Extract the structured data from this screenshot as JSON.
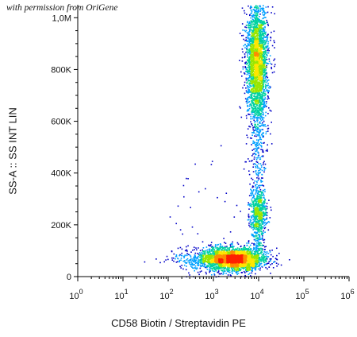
{
  "watermark": "with permission from OriGene",
  "chart_data": {
    "type": "scatter",
    "subtype": "flow-cytometry density dot plot",
    "xlabel": "CD58 Biotin / Streptavidin PE",
    "ylabel": "SS-A :: SS INT LIN",
    "xscale": "log",
    "yscale": "linear",
    "xlim": [
      1,
      1000000
    ],
    "ylim": [
      0,
      1050000
    ],
    "x_ticks": [
      {
        "base": "10",
        "exp": "0"
      },
      {
        "base": "10",
        "exp": "1"
      },
      {
        "base": "10",
        "exp": "2"
      },
      {
        "base": "10",
        "exp": "3"
      },
      {
        "base": "10",
        "exp": "4"
      },
      {
        "base": "10",
        "exp": "5"
      },
      {
        "base": "10",
        "exp": "6"
      }
    ],
    "y_ticks": [
      {
        "value": 0,
        "label": "0"
      },
      {
        "value": 200000,
        "label": "200K"
      },
      {
        "value": 400000,
        "label": "400K"
      },
      {
        "value": 600000,
        "label": "600K"
      },
      {
        "value": 800000,
        "label": "800K"
      },
      {
        "value": 1000000,
        "label": "1,0M"
      }
    ],
    "colormap": [
      "#0000c8",
      "#00a0ff",
      "#00d2a0",
      "#9be600",
      "#ffe600",
      "#ff8c00",
      "#ff2000"
    ],
    "populations": [
      {
        "x": 3000,
        "y": 70000,
        "sx_log": 0.32,
        "sy": 22000,
        "density": "high"
      },
      {
        "x": 9000,
        "y": 830000,
        "sx_log": 0.12,
        "sy": 110000,
        "density": "medium"
      },
      {
        "x": 9500,
        "y": 250000,
        "sx_log": 0.1,
        "sy": 45000,
        "density": "low"
      }
    ],
    "grid": false
  }
}
